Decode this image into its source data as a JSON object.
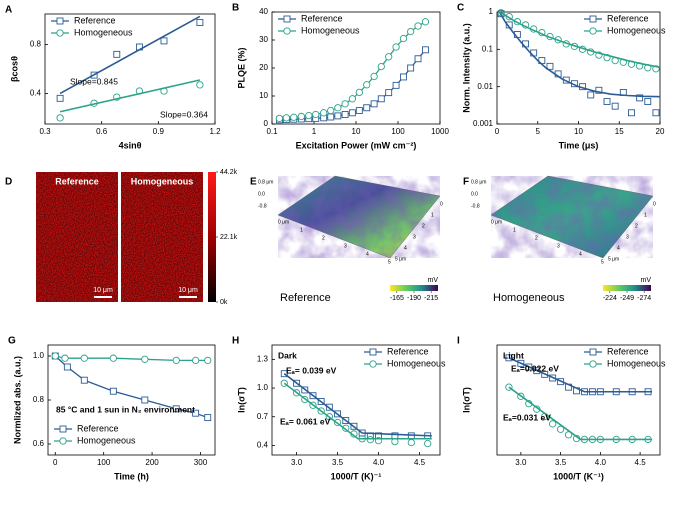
{
  "chart_data": [
    {
      "type": "scatter",
      "panel": "A",
      "xlabel": "4sinθ",
      "ylabel": "βcosθ",
      "xlim": [
        0.3,
        1.2
      ],
      "xticks": [
        0.3,
        0.6,
        0.9,
        1.2
      ],
      "ylim": [
        0.15,
        1.05
      ],
      "yticks": [
        0.4,
        0.8
      ],
      "legend": "upper left",
      "series": [
        {
          "name": "Reference",
          "color": "#2b5c94",
          "marker": "square",
          "mode": "marker",
          "x": [
            0.38,
            0.56,
            0.68,
            0.8,
            0.93,
            1.12
          ],
          "values": [
            0.36,
            0.55,
            0.72,
            0.78,
            0.83,
            0.98
          ],
          "fit_x": [
            0.38,
            1.12
          ],
          "fit_values": [
            0.4,
            1.03
          ]
        },
        {
          "name": "Homogeneous",
          "color": "#2ba38a",
          "marker": "circle",
          "mode": "marker",
          "x": [
            0.38,
            0.56,
            0.68,
            0.8,
            0.93,
            1.12
          ],
          "values": [
            0.2,
            0.32,
            0.37,
            0.42,
            0.42,
            0.47
          ],
          "fit_x": [
            0.38,
            1.12
          ],
          "fit_values": [
            0.25,
            0.51
          ]
        }
      ],
      "annotations": [
        {
          "text": "Slope=0.845",
          "color": "#2b5c94"
        },
        {
          "text": "Slope=0.364",
          "color": "#2ba38a"
        }
      ]
    },
    {
      "type": "line",
      "panel": "B",
      "xlabel": "Excitation Power (mW cm⁻²)",
      "ylabel": "PLQE (%)",
      "xscale": "log",
      "xlim": [
        0.1,
        1000
      ],
      "xticks": [
        0.1,
        1,
        10,
        100,
        1000
      ],
      "ylim": [
        0,
        40
      ],
      "yticks": [
        0,
        10,
        20,
        30,
        40
      ],
      "legend": "upper left",
      "series": [
        {
          "name": "Reference",
          "color": "#2b5c94",
          "marker": "square",
          "mode": "line",
          "x": [
            0.15,
            0.22,
            0.33,
            0.5,
            0.75,
            1.1,
            1.7,
            2.5,
            3.7,
            5.5,
            8.2,
            12,
            18,
            27,
            40,
            60,
            90,
            135,
            200,
            300,
            450
          ],
          "values": [
            1.5,
            1.6,
            1.7,
            1.8,
            1.9,
            2,
            2.2,
            2.5,
            2.9,
            3.4,
            4,
            4.8,
            5.8,
            7.2,
            9,
            11.2,
            13.8,
            16.8,
            20,
            23.3,
            26.5
          ]
        },
        {
          "name": "Homogeneous",
          "color": "#2ba38a",
          "marker": "circle",
          "mode": "line",
          "x": [
            0.15,
            0.22,
            0.33,
            0.5,
            0.75,
            1.1,
            1.7,
            2.5,
            3.7,
            5.5,
            8.2,
            12,
            18,
            27,
            40,
            60,
            90,
            135,
            200,
            300,
            450
          ],
          "values": [
            2,
            2.2,
            2.4,
            2.7,
            3,
            3.4,
            4,
            4.8,
            5.8,
            7.2,
            9,
            11.3,
            14,
            17,
            20.5,
            24,
            27.5,
            30.5,
            33,
            35,
            36.5
          ]
        }
      ]
    },
    {
      "type": "scatter",
      "panel": "C",
      "xlabel": "Time (μs)",
      "ylabel": "Norm. Intensity (a.u.)",
      "yscale": "log",
      "xlim": [
        0,
        20
      ],
      "xticks": [
        0,
        5,
        10,
        15,
        20
      ],
      "ylim": [
        0.001,
        1
      ],
      "yticks": [
        0.001,
        0.01,
        0.1,
        1
      ],
      "legend": "upper right",
      "series": [
        {
          "name": "Reference",
          "color": "#2b5c94",
          "marker": "square",
          "mode": "marker",
          "x": [
            0.5,
            1.5,
            2.5,
            3.5,
            4.5,
            5.5,
            6.5,
            7.5,
            8.5,
            9.5,
            10.5,
            11.5,
            12.5,
            13.5,
            14.5,
            15.5,
            16.5,
            17.5,
            18.5,
            19.5
          ],
          "values": [
            0.9,
            0.45,
            0.25,
            0.14,
            0.08,
            0.05,
            0.035,
            0.022,
            0.015,
            0.012,
            0.01,
            0.006,
            0.008,
            0.004,
            0.003,
            0.007,
            0.002,
            0.005,
            0.004,
            0.002
          ],
          "fit_x": [
            0.3,
            1,
            2,
            3,
            4,
            5,
            6,
            8,
            10,
            12,
            14,
            16,
            18,
            20
          ],
          "fit_values": [
            1,
            0.55,
            0.28,
            0.15,
            0.085,
            0.05,
            0.032,
            0.016,
            0.01,
            0.0075,
            0.0063,
            0.0058,
            0.0055,
            0.0054
          ]
        },
        {
          "name": "Homogeneous",
          "color": "#2ba38a",
          "marker": "circle",
          "mode": "marker",
          "x": [
            0.5,
            1.5,
            2.5,
            3.5,
            4.5,
            5.5,
            6.5,
            7.5,
            8.5,
            9.5,
            10.5,
            11.5,
            12.5,
            13.5,
            14.5,
            15.5,
            16.5,
            17.5,
            18.5,
            19.5
          ],
          "values": [
            0.95,
            0.75,
            0.55,
            0.45,
            0.35,
            0.28,
            0.22,
            0.18,
            0.14,
            0.12,
            0.1,
            0.085,
            0.07,
            0.06,
            0.05,
            0.045,
            0.04,
            0.036,
            0.032,
            0.03
          ],
          "fit_x": [
            0.3,
            1,
            2,
            3,
            4,
            5,
            6,
            8,
            10,
            12,
            14,
            16,
            18,
            20
          ],
          "fit_values": [
            1,
            0.82,
            0.6,
            0.46,
            0.36,
            0.29,
            0.23,
            0.16,
            0.115,
            0.085,
            0.065,
            0.05,
            0.04,
            0.033
          ]
        }
      ]
    },
    {
      "type": "map",
      "panel": "D",
      "labels": [
        "Reference",
        "Homogeneous"
      ],
      "scalebar": "10 μm",
      "clim": [
        0,
        44200
      ],
      "colorbar_ticks": [
        {
          "value": 44200,
          "label": "44.2k"
        },
        {
          "value": 22100,
          "label": "22.1k"
        },
        {
          "value": 0,
          "label": "0k"
        }
      ]
    },
    {
      "type": "surface",
      "panel": "E",
      "label": "Reference",
      "unit": "mV",
      "clim": [
        -155,
        -225
      ],
      "colorbar_ticks": [
        -165,
        -190,
        -215
      ],
      "z_ticks": [
        "0.8 μm",
        "0.0",
        "-0.8"
      ],
      "x_ticks": [
        "0 μm",
        "1",
        "2",
        "3",
        "4",
        "5"
      ],
      "y_ticks": [
        "0",
        "1",
        "2",
        "3",
        "4",
        "5 μm"
      ]
    },
    {
      "type": "surface",
      "panel": "F",
      "label": "Homogeneous",
      "unit": "mV",
      "clim": [
        -214,
        -284
      ],
      "colorbar_ticks": [
        -224,
        -249,
        -274
      ],
      "z_ticks": [
        "0.8 μm",
        "0.0",
        "-0.8"
      ],
      "x_ticks": [
        "0 μm",
        "1",
        "2",
        "3",
        "4",
        "5"
      ],
      "y_ticks": [
        "0",
        "1",
        "2",
        "3",
        "4",
        "5 μm"
      ]
    },
    {
      "type": "line",
      "panel": "G",
      "xlabel": "Time (h)",
      "ylabel": "Normlized abs. (a.u.)",
      "xlim": [
        -15,
        330
      ],
      "xticks": [
        0,
        100,
        200,
        300
      ],
      "ylim": [
        0.55,
        1.05
      ],
      "yticks": [
        0.6,
        0.8,
        {
          "value": 1,
          "label": "1.0"
        }
      ],
      "legend": "lower left",
      "series": [
        {
          "name": "Reference",
          "color": "#2b5c94",
          "marker": "square",
          "mode": "line",
          "x": [
            0,
            25,
            60,
            120,
            185,
            250,
            290,
            315
          ],
          "values": [
            1.0,
            0.95,
            0.89,
            0.84,
            0.8,
            0.76,
            0.74,
            0.72
          ]
        },
        {
          "name": "Homogeneous",
          "color": "#2ba38a",
          "marker": "circle",
          "mode": "line",
          "x": [
            0,
            20,
            60,
            120,
            185,
            250,
            290,
            315
          ],
          "values": [
            1.0,
            0.99,
            0.99,
            0.99,
            0.985,
            0.98,
            0.98,
            0.98
          ]
        }
      ],
      "annotations": [
        {
          "text": "85 °C and 1 sun in N₂ environment",
          "color": "#000000"
        }
      ]
    },
    {
      "type": "scatter",
      "panel": "H",
      "xlabel": "1000/T (K)⁻¹",
      "ylabel": "ln(σT)",
      "xlim": [
        2.7,
        4.75
      ],
      "xticks": [
        {
          "value": 3,
          "label": "3.0"
        },
        3.5,
        {
          "value": 4,
          "label": "4.0"
        },
        4.5
      ],
      "ylim": [
        0.3,
        1.45
      ],
      "yticks": [
        0.4,
        0.7,
        {
          "value": 1,
          "label": "1.0"
        },
        1.3
      ],
      "legend": "upper right",
      "series": [
        {
          "name": "Reference",
          "color": "#2b5c94",
          "marker": "square",
          "mode": "marker",
          "x": [
            2.85,
            3.0,
            3.1,
            3.2,
            3.3,
            3.4,
            3.5,
            3.6,
            3.7,
            3.8,
            3.9,
            4.0,
            4.2,
            4.4,
            4.6
          ],
          "values": [
            1.15,
            1.05,
            0.98,
            0.92,
            0.86,
            0.8,
            0.73,
            0.66,
            0.6,
            0.53,
            0.5,
            0.5,
            0.5,
            0.5,
            0.5
          ],
          "fit_x": [
            2.85,
            3.8,
            4.65
          ],
          "fit_values": [
            1.15,
            0.53,
            0.5
          ]
        },
        {
          "name": "Homogeneous",
          "color": "#2ba38a",
          "marker": "circle",
          "mode": "marker",
          "x": [
            2.85,
            3.0,
            3.1,
            3.2,
            3.3,
            3.4,
            3.5,
            3.6,
            3.7,
            3.8,
            3.9,
            4.0,
            4.2,
            4.4,
            4.6
          ],
          "values": [
            1.05,
            0.95,
            0.88,
            0.82,
            0.76,
            0.7,
            0.64,
            0.58,
            0.52,
            0.47,
            0.46,
            0.45,
            0.44,
            0.43,
            0.42
          ],
          "fit_x": [
            2.85,
            3.75,
            4.65
          ],
          "fit_values": [
            1.05,
            0.47,
            0.47
          ]
        }
      ],
      "annotations": [
        {
          "text": "Dark",
          "color": "#000000"
        },
        {
          "text": "Eₐ= 0.039 eV",
          "color": "#000000"
        },
        {
          "text": "Eₐ= 0.061 eV",
          "color": "#000000"
        }
      ]
    },
    {
      "type": "scatter",
      "panel": "I",
      "xlabel": "1000/T (K⁻¹)",
      "ylabel": "ln(σT)",
      "xlim": [
        2.7,
        4.75
      ],
      "xticks": [
        {
          "value": 3,
          "label": "3.0"
        },
        3.5,
        {
          "value": 4,
          "label": "4.0"
        },
        4.5
      ],
      "ylim": [
        0.3,
        0.9
      ],
      "legend": "upper right",
      "series": [
        {
          "name": "Reference",
          "color": "#2b5c94",
          "marker": "square",
          "mode": "marker",
          "x": [
            2.85,
            3.0,
            3.1,
            3.2,
            3.3,
            3.4,
            3.5,
            3.6,
            3.7,
            3.8,
            3.9,
            4.0,
            4.2,
            4.4,
            4.6
          ],
          "values": [
            0.83,
            0.8,
            0.78,
            0.76,
            0.74,
            0.72,
            0.7,
            0.67,
            0.65,
            0.645,
            0.645,
            0.645,
            0.645,
            0.645,
            0.645
          ],
          "fit_x": [
            2.85,
            3.8,
            4.65
          ],
          "fit_values": [
            0.83,
            0.645,
            0.645
          ]
        },
        {
          "name": "Homogeneous",
          "color": "#2ba38a",
          "marker": "circle",
          "mode": "marker",
          "x": [
            2.85,
            3.0,
            3.1,
            3.2,
            3.3,
            3.4,
            3.5,
            3.6,
            3.7,
            3.8,
            3.9,
            4.0,
            4.2,
            4.4,
            4.6
          ],
          "values": [
            0.67,
            0.62,
            0.58,
            0.55,
            0.51,
            0.47,
            0.44,
            0.41,
            0.39,
            0.385,
            0.385,
            0.385,
            0.385,
            0.385,
            0.385
          ],
          "fit_x": [
            2.85,
            3.75,
            4.65
          ],
          "fit_values": [
            0.67,
            0.385,
            0.385
          ]
        }
      ],
      "annotations": [
        {
          "text": "Light",
          "color": "#000000"
        },
        {
          "text": "Eₐ=0.022 eV",
          "color": "#000000"
        },
        {
          "text": "Eₐ=0.031 eV",
          "color": "#000000"
        }
      ]
    }
  ]
}
